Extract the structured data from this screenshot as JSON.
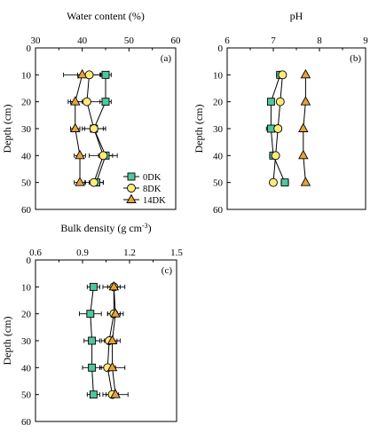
{
  "chart_data": [
    {
      "type": "line",
      "panel": "(a)",
      "xlabel": "Water content (%)",
      "ylabel": "Depth (cm)",
      "xlim": [
        30,
        60
      ],
      "xticks": [
        30,
        40,
        50,
        60
      ],
      "ylim": [
        0,
        60
      ],
      "yticks": [
        0,
        10,
        20,
        30,
        40,
        50,
        60
      ],
      "depth": [
        10,
        20,
        30,
        40,
        50
      ],
      "series": [
        {
          "name": "0DK",
          "marker": "square",
          "color": "#4fc79b",
          "values": [
            45,
            45,
            42.5,
            45,
            43
          ],
          "err": [
            1.2,
            1.2,
            2.0,
            1.5,
            1.5
          ]
        },
        {
          "name": "8DK",
          "marker": "circle",
          "color": "#ffeb7a",
          "values": [
            41.5,
            41,
            42.5,
            44.5,
            42.5
          ],
          "err": [
            2.5,
            3.5,
            2.5,
            3.0,
            2.0
          ]
        },
        {
          "name": "14DK",
          "marker": "triangle",
          "color": "#e6a23a",
          "values": [
            40,
            38.5,
            38.5,
            39.5,
            39.5
          ],
          "err": [
            4.0,
            1.5,
            1.0,
            1.2,
            1.2
          ]
        }
      ],
      "legend": [
        "0DK",
        "8DK",
        "14DK"
      ]
    },
    {
      "type": "line",
      "panel": "(b)",
      "xlabel": "pH",
      "ylabel": "Depth (cm)",
      "xlim": [
        6,
        9
      ],
      "xticks": [
        6,
        7,
        8,
        9
      ],
      "ylim": [
        0,
        60
      ],
      "yticks": [
        0,
        10,
        20,
        30,
        40,
        50,
        60
      ],
      "depth": [
        10,
        20,
        30,
        40,
        50
      ],
      "series": [
        {
          "name": "0DK",
          "marker": "square",
          "color": "#4fc79b",
          "values": [
            7.15,
            6.95,
            6.95,
            7.0,
            7.25
          ],
          "err": [
            0.08,
            0.05,
            0.1,
            0.08,
            0.08
          ]
        },
        {
          "name": "8DK",
          "marker": "circle",
          "color": "#ffeb7a",
          "values": [
            7.2,
            7.15,
            7.1,
            7.05,
            7.0
          ],
          "err": [
            0.06,
            0.06,
            0.08,
            0.06,
            0.05
          ]
        },
        {
          "name": "14DK",
          "marker": "triangle",
          "color": "#e6a23a",
          "values": [
            7.7,
            7.7,
            7.65,
            7.65,
            7.7
          ],
          "err": [
            0.04,
            0.04,
            0.04,
            0.04,
            0.04
          ]
        }
      ]
    },
    {
      "type": "line",
      "panel": "(c)",
      "xlabel": "Bulk density (g cm",
      "xlabel_sup": "-3",
      "xlabel_end": ")",
      "ylabel": "Depth (cm)",
      "xlim": [
        0.6,
        1.5
      ],
      "xticks": [
        0.6,
        0.9,
        1.2,
        1.5
      ],
      "xtick_labels": [
        "0.6",
        "0.9",
        "1.2",
        "1.5"
      ],
      "ylim": [
        0,
        60
      ],
      "yticks": [
        0,
        10,
        20,
        30,
        40,
        50,
        60
      ],
      "depth": [
        10,
        20,
        30,
        40,
        50
      ],
      "series": [
        {
          "name": "0DK",
          "marker": "square",
          "color": "#4fc79b",
          "values": [
            0.97,
            0.95,
            0.96,
            0.96,
            0.97
          ],
          "err": [
            0.04,
            0.07,
            0.05,
            0.06,
            0.04
          ]
        },
        {
          "name": "8DK",
          "marker": "circle",
          "color": "#ffeb7a",
          "values": [
            1.1,
            1.1,
            1.07,
            1.06,
            1.09
          ],
          "err": [
            0.04,
            0.04,
            0.05,
            0.05,
            0.04
          ]
        },
        {
          "name": "14DK",
          "marker": "triangle",
          "color": "#e6a23a",
          "values": [
            1.1,
            1.11,
            1.09,
            1.09,
            1.11
          ],
          "err": [
            0.07,
            0.05,
            0.05,
            0.08,
            0.08
          ]
        }
      ]
    }
  ]
}
